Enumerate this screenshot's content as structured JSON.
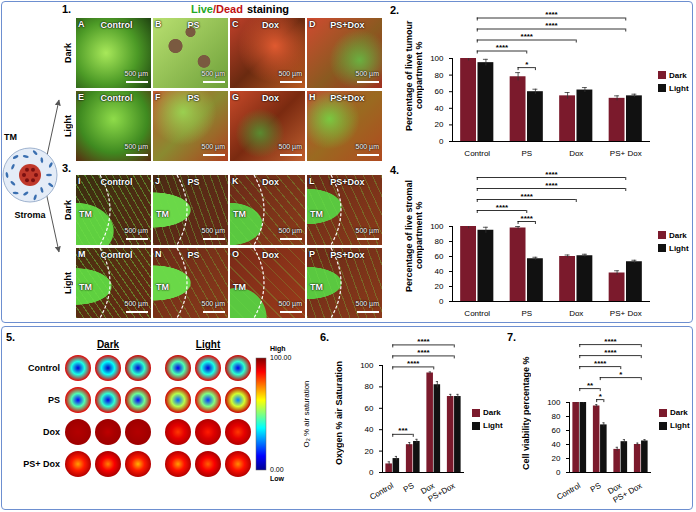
{
  "figure": {
    "panel_labels": [
      "1.",
      "2.",
      "3.",
      "4.",
      "5.",
      "6.",
      "7."
    ],
    "schematic": {
      "tumour": "TM",
      "stroma": "Stroma"
    },
    "staining_title": {
      "live": "Live",
      "separator": "/",
      "dead": "Dead",
      "suffix": "staining"
    },
    "panel1": {
      "rows": [
        "Dark",
        "Light"
      ],
      "images": [
        [
          {
            "letter": "A",
            "label": "Control"
          },
          {
            "letter": "B",
            "label": "PS"
          },
          {
            "letter": "C",
            "label": "Dox"
          },
          {
            "letter": "D",
            "label": "PS+Dox"
          }
        ],
        [
          {
            "letter": "E",
            "label": "Control"
          },
          {
            "letter": "F",
            "label": "PS"
          },
          {
            "letter": "G",
            "label": "Dox"
          },
          {
            "letter": "H",
            "label": "PS+Dox"
          }
        ]
      ],
      "scale_bar": "500 µm"
    },
    "panel3": {
      "rows": [
        "Dark",
        "Light"
      ],
      "images": [
        [
          {
            "letter": "I",
            "label": "Control"
          },
          {
            "letter": "J",
            "label": "PS"
          },
          {
            "letter": "K",
            "label": "Dox"
          },
          {
            "letter": "L",
            "label": "PS+Dox"
          }
        ],
        [
          {
            "letter": "M",
            "label": "Control"
          },
          {
            "letter": "N",
            "label": "PS"
          },
          {
            "letter": "O",
            "label": "Dox"
          },
          {
            "letter": "P",
            "label": "PS+Dox"
          }
        ]
      ],
      "scale_bar": "500 µm",
      "tumour_label": "TM"
    },
    "panel5": {
      "columns": [
        "Dark",
        "Light"
      ],
      "rows": [
        "Control",
        "PS",
        "Dox",
        "PS+ Dox"
      ],
      "wells": [
        {
          "dark": [
            [
              8,
              40,
              90
            ],
            [
              6,
              38,
              90
            ],
            [
              8,
              42,
              92
            ]
          ],
          "light": [
            [
              10,
              45,
              92
            ],
            [
              8,
              40,
              90
            ],
            [
              10,
              42,
              92
            ]
          ]
        },
        {
          "dark": [
            [
              12,
              45,
              90
            ],
            [
              10,
              42,
              90
            ],
            [
              12,
              48,
              92
            ]
          ],
          "light": [
            [
              22,
              55,
              92
            ],
            [
              18,
              50,
              90
            ],
            [
              25,
              58,
              93
            ]
          ]
        },
        {
          "dark": [
            [
              95,
              96,
              97
            ],
            [
              94,
              96,
              97
            ],
            [
              95,
              96,
              97
            ]
          ],
          "light": [
            [
              82,
              90,
              95
            ],
            [
              85,
              91,
              95
            ],
            [
              82,
              90,
              95
            ]
          ]
        },
        {
          "dark": [
            [
              72,
              85,
              95
            ],
            [
              75,
              88,
              96
            ],
            [
              70,
              85,
              95
            ]
          ],
          "light": [
            [
              72,
              86,
              95
            ],
            [
              78,
              88,
              96
            ],
            [
              74,
              86,
              95
            ]
          ]
        }
      ],
      "colorbar": {
        "title": "O₂ % air saturation",
        "range": [
          0,
          100
        ],
        "ticks": [
          {
            "value": 100,
            "label": "100.00"
          },
          {
            "value": 0,
            "label": "0.00"
          }
        ],
        "high": "High",
        "low": "Low"
      }
    }
  },
  "chart_data": [
    {
      "type": "bar",
      "ylabel": "Percentage of live tumour compartment %",
      "categories": [
        "Control",
        "PS",
        "Dox",
        "PS+ Dox"
      ],
      "series": [
        {
          "name": "Dark",
          "color": "#7b1a2c",
          "values": [
            100,
            78,
            55,
            52
          ],
          "errors": [
            3,
            5,
            4,
            3
          ]
        },
        {
          "name": "Light",
          "color": "#111111",
          "values": [
            95,
            60,
            62,
            55
          ],
          "errors": [
            4,
            3,
            3,
            2
          ]
        }
      ],
      "ylim": [
        0,
        100
      ],
      "yticks": [
        0,
        20,
        40,
        60,
        80,
        100
      ],
      "legend": "right",
      "significance": [
        {
          "from": "PS",
          "to": "PS",
          "label": "*"
        },
        {
          "from": "Control",
          "to": "PS",
          "label": "****"
        },
        {
          "from": "Control",
          "to": "Dox",
          "label": "****"
        },
        {
          "from": "Control",
          "to": "PS+ Dox",
          "label": "****"
        },
        {
          "from": "Control",
          "to": "PS+ Dox",
          "label": "****"
        }
      ]
    },
    {
      "type": "bar",
      "ylabel": "Percentage of live stromal compartment %",
      "categories": [
        "Control",
        "PS",
        "Dox",
        "PS+ Dox"
      ],
      "series": [
        {
          "name": "Dark",
          "color": "#7b1a2c",
          "values": [
            100,
            98,
            60,
            38
          ],
          "errors": [
            3,
            2,
            2,
            3
          ]
        },
        {
          "name": "Light",
          "color": "#111111",
          "values": [
            95,
            57,
            61,
            53
          ],
          "errors": [
            4,
            2,
            2,
            2
          ]
        }
      ],
      "ylim": [
        0,
        100
      ],
      "yticks": [
        0,
        20,
        40,
        60,
        80,
        100
      ],
      "legend": "right",
      "significance": [
        {
          "from": "PS",
          "to": "PS",
          "label": "****"
        },
        {
          "from": "Control",
          "to": "PS",
          "label": "****"
        },
        {
          "from": "Control",
          "to": "Dox",
          "label": "****"
        },
        {
          "from": "Control",
          "to": "PS+ Dox",
          "label": "****"
        },
        {
          "from": "Control",
          "to": "PS+ Dox",
          "label": "****"
        }
      ]
    },
    {
      "type": "bar",
      "ylabel": "Oxygen % air Saturation",
      "categories": [
        "Control",
        "PS",
        "Dox",
        "PS+Dox"
      ],
      "series": [
        {
          "name": "Dark",
          "color": "#7b1a2c",
          "values": [
            8,
            26,
            93,
            71
          ],
          "errors": [
            2,
            2,
            1,
            2
          ]
        },
        {
          "name": "Light",
          "color": "#111111",
          "values": [
            13,
            29,
            82,
            71
          ],
          "errors": [
            2,
            2,
            3,
            2
          ]
        }
      ],
      "ylim": [
        0,
        100
      ],
      "yticks": [
        0,
        20,
        40,
        60,
        80,
        100
      ],
      "legend": "right",
      "significance": [
        {
          "from": "Control",
          "to": "PS",
          "label": "***"
        },
        {
          "from": "Control",
          "to": "Dox",
          "label": "****"
        },
        {
          "from": "Control",
          "to": "PS+Dox",
          "label": "****"
        },
        {
          "from": "Control",
          "to": "PS+Dox",
          "label": "****"
        }
      ]
    },
    {
      "type": "bar",
      "ylabel": "Cell viability percentage %",
      "categories": [
        "Control",
        "PS",
        "Dox",
        "PS+ Dox"
      ],
      "series": [
        {
          "name": "Dark",
          "color": "#7b1a2c",
          "values": [
            100,
            95,
            33,
            40
          ],
          "errors": [
            2,
            2,
            3,
            2
          ]
        },
        {
          "name": "Light",
          "color": "#111111",
          "values": [
            100,
            68,
            44,
            45
          ],
          "errors": [
            2,
            3,
            3,
            2
          ]
        }
      ],
      "ylim": [
        0,
        100
      ],
      "yticks": [
        0,
        20,
        40,
        60,
        80,
        100
      ],
      "legend": "right",
      "significance": [
        {
          "from": "PS",
          "to": "PS",
          "label": "*"
        },
        {
          "from": "Control",
          "to": "PS",
          "label": "**"
        },
        {
          "from": "PS",
          "to": "PS+ Dox",
          "label": "*"
        },
        {
          "from": "Control",
          "to": "Dox",
          "label": "****"
        },
        {
          "from": "Control",
          "to": "PS+ Dox",
          "label": "****"
        },
        {
          "from": "Control",
          "to": "PS+ Dox",
          "label": "****"
        }
      ]
    }
  ]
}
